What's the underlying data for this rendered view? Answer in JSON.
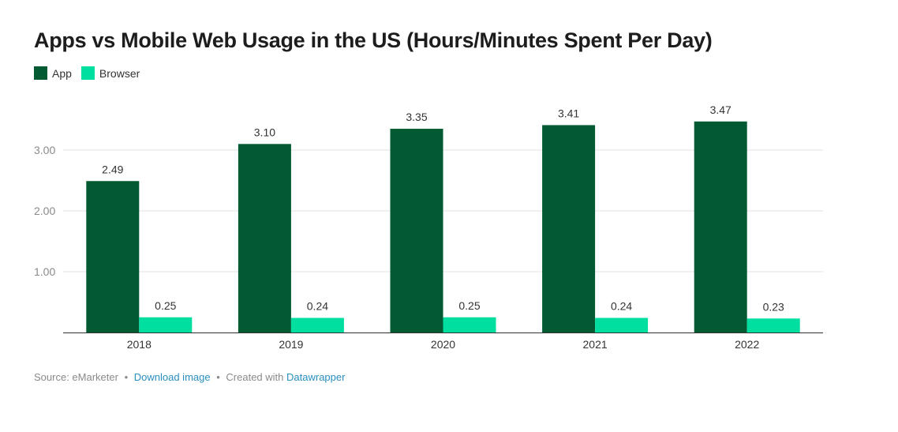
{
  "title": "Apps vs Mobile Web Usage in the US (Hours/Minutes Spent Per Day)",
  "colors": {
    "app": "#015a32",
    "browser": "#00dfa0",
    "grid": "#e2e2e2",
    "axis": "#333333",
    "tick_text": "#8a8a8a"
  },
  "legend": [
    {
      "label": "App",
      "color": "#015a32"
    },
    {
      "label": "Browser",
      "color": "#00dfa0"
    }
  ],
  "chart_data": {
    "type": "bar",
    "categories": [
      "2018",
      "2019",
      "2020",
      "2021",
      "2022"
    ],
    "series": [
      {
        "name": "App",
        "values": [
          2.49,
          3.1,
          3.35,
          3.41,
          3.47
        ],
        "labels": [
          "2.49",
          "3.10",
          "3.35",
          "3.41",
          "3.47"
        ]
      },
      {
        "name": "Browser",
        "values": [
          0.25,
          0.24,
          0.25,
          0.24,
          0.23
        ],
        "labels": [
          "0.25",
          "0.24",
          "0.25",
          "0.24",
          "0.23"
        ]
      }
    ],
    "yticks": [
      1,
      2,
      3
    ],
    "ytick_labels": [
      "1.00",
      "2.00",
      "3.00"
    ],
    "ylim": [
      0,
      3.6
    ],
    "grid": true,
    "legend_position": "top-left"
  },
  "footer": {
    "source": "Source: eMarketer",
    "download": "Download image",
    "created": "Created with",
    "tool": "Datawrapper",
    "separator": "•"
  }
}
